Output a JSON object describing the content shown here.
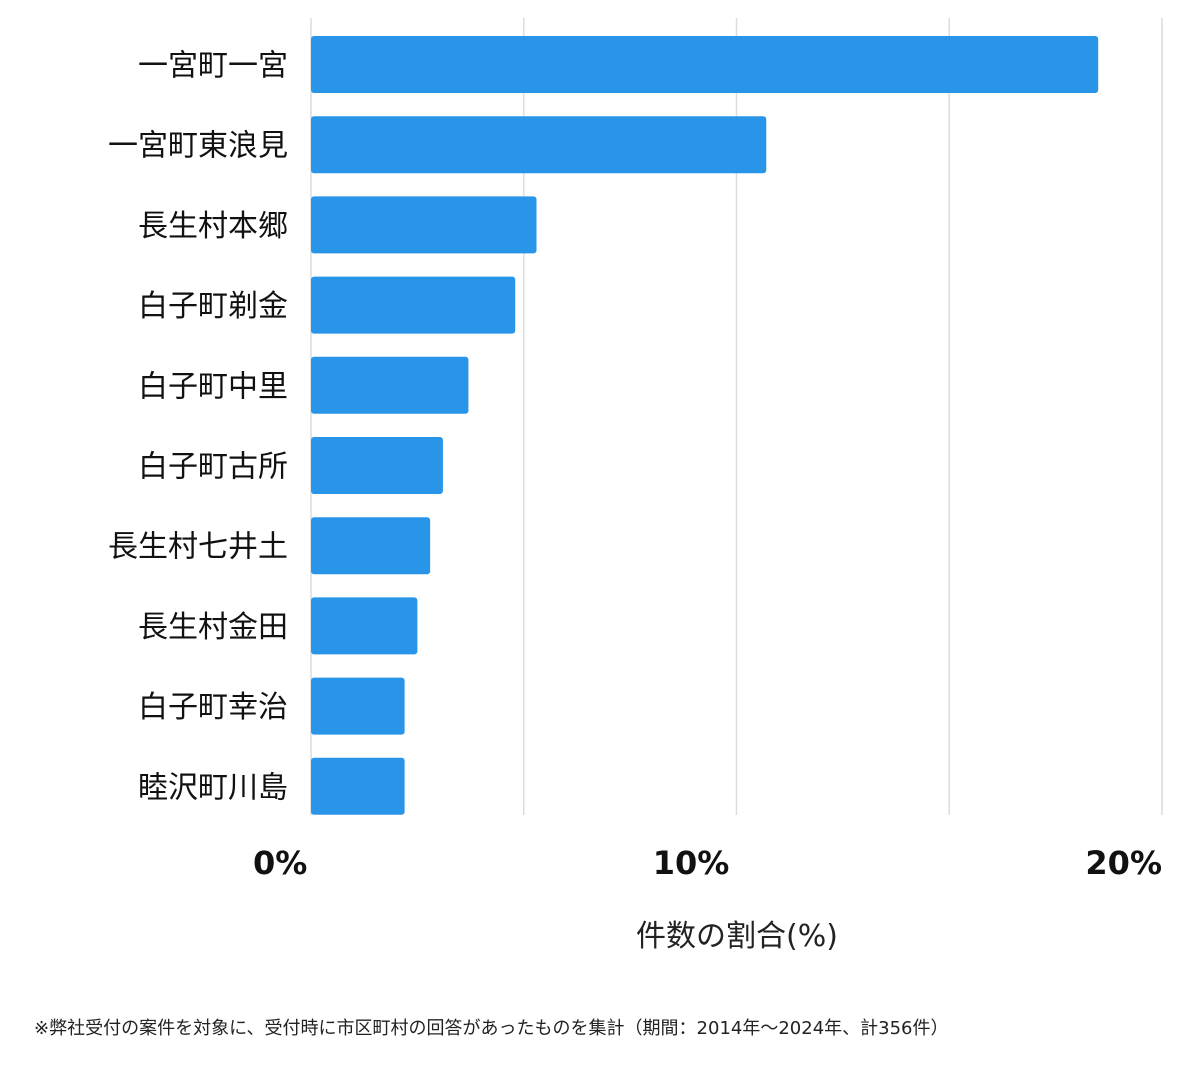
{
  "chart_data": {
    "type": "bar",
    "orientation": "horizontal",
    "categories": [
      "一宮町一宮",
      "一宮町東浪見",
      "長生村本郷",
      "白子町剃金",
      "白子町中里",
      "白子町古所",
      "長生村七井土",
      "長生村金田",
      "白子町幸治",
      "睦沢町川島"
    ],
    "values": [
      18.5,
      10.7,
      5.3,
      4.8,
      3.7,
      3.1,
      2.8,
      2.5,
      2.2,
      2.2
    ],
    "xlim": [
      0,
      20
    ],
    "xticks": [
      0,
      10,
      20
    ],
    "xtick_labels": [
      "0%",
      "10%",
      "20%"
    ],
    "gridlines": [
      0,
      5,
      10,
      15,
      20
    ],
    "xlabel": "件数の割合(%)",
    "ylabel": "",
    "title": "",
    "bar_color": "#2895e8",
    "grid": true
  },
  "footnote": "※弊社受付の案件を対象に、受付時に市区町村の回答があったものを集計（期間：2014年〜2024年、計356件）"
}
